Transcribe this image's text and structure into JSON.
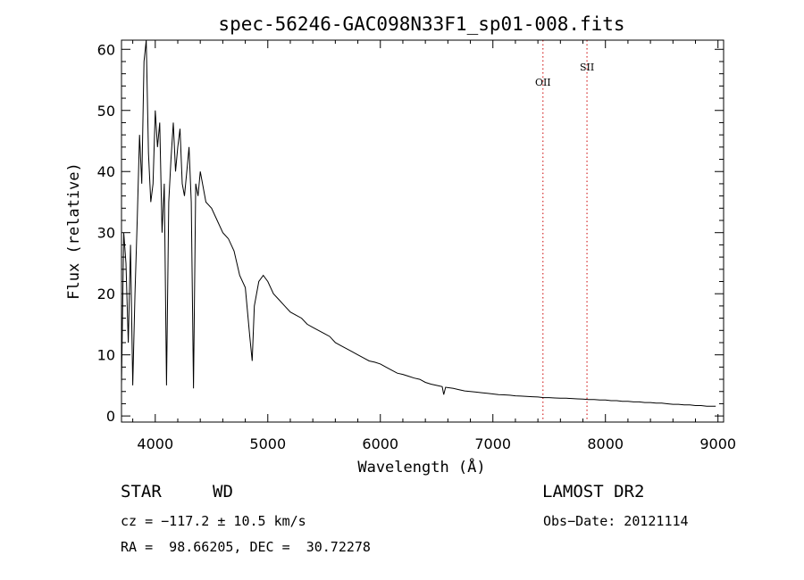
{
  "chart_data": {
    "type": "line",
    "title": "spec-56246-GAC098N33F1_sp01-008.fits",
    "xlabel": "Wavelength (Å)",
    "ylabel": "Flux (relative)",
    "xlim": [
      3700,
      9050
    ],
    "ylim": [
      -1,
      61.5
    ],
    "x_ticks": [
      4000,
      5000,
      6000,
      7000,
      8000,
      9000
    ],
    "y_ticks": [
      0,
      10,
      20,
      30,
      40,
      50,
      60
    ],
    "grid": false,
    "line_color": "#000000",
    "marker_color": "#cc0000",
    "lines": [
      {
        "name": "OII",
        "wavelength": 7445
      },
      {
        "name": "SII",
        "wavelength": 7836
      }
    ],
    "series": [
      {
        "x": [
          3700,
          3720,
          3740,
          3760,
          3780,
          3800,
          3820,
          3840,
          3860,
          3880,
          3900,
          3920,
          3940,
          3960,
          3980,
          4000,
          4020,
          4040,
          4060,
          4080,
          4100,
          4120,
          4140,
          4160,
          4180,
          4200,
          4220,
          4240,
          4260,
          4280,
          4300,
          4320,
          4340,
          4360,
          4380,
          4400,
          4450,
          4500,
          4550,
          4600,
          4650,
          4700,
          4750,
          4800,
          4840,
          4861,
          4880,
          4920,
          4960,
          5000,
          5050,
          5100,
          5150,
          5200,
          5250,
          5300,
          5350,
          5400,
          5450,
          5500,
          5550,
          5600,
          5650,
          5700,
          5750,
          5800,
          5850,
          5900,
          5950,
          6000,
          6050,
          6100,
          6150,
          6200,
          6250,
          6300,
          6350,
          6400,
          6450,
          6500,
          6550,
          6563,
          6580,
          6650,
          6700,
          6750,
          6800,
          6850,
          6900,
          6950,
          7000,
          7050,
          7100,
          7150,
          7200,
          7250,
          7300,
          7350,
          7400,
          7450,
          7500,
          7550,
          7600,
          7650,
          7700,
          7750,
          7800,
          7850,
          7900,
          7950,
          8000,
          8050,
          8100,
          8150,
          8200,
          8250,
          8300,
          8350,
          8400,
          8450,
          8500,
          8550,
          8600,
          8650,
          8700,
          8750,
          8800,
          8850,
          8900,
          8950,
          8980
        ],
        "y": [
          5,
          30,
          25,
          12,
          28,
          5,
          20,
          32,
          46,
          38,
          58,
          62,
          43,
          35,
          38,
          50,
          44,
          48,
          30,
          38,
          5,
          35,
          42,
          48,
          40,
          44,
          47,
          38,
          36,
          40,
          44,
          35,
          4.5,
          38,
          36,
          40,
          35,
          34,
          32,
          30,
          29,
          27,
          23,
          21,
          13,
          9,
          18,
          22,
          23,
          22,
          20,
          19,
          18,
          17,
          16.5,
          16,
          15,
          14.5,
          14,
          13.5,
          13,
          12,
          11.5,
          11,
          10.5,
          10,
          9.5,
          9,
          8.8,
          8.5,
          8,
          7.5,
          7,
          6.8,
          6.5,
          6.2,
          6,
          5.5,
          5.2,
          5,
          4.8,
          3.5,
          4.7,
          4.5,
          4.3,
          4.1,
          4,
          3.9,
          3.8,
          3.7,
          3.6,
          3.5,
          3.45,
          3.4,
          3.3,
          3.25,
          3.2,
          3.15,
          3.1,
          3,
          3,
          2.95,
          2.9,
          2.9,
          2.85,
          2.8,
          2.75,
          2.7,
          2.7,
          2.6,
          2.6,
          2.5,
          2.5,
          2.4,
          2.4,
          2.3,
          2.3,
          2.2,
          2.2,
          2.1,
          2.1,
          2,
          1.9,
          1.9,
          1.8,
          1.8,
          1.7,
          1.7,
          1.6,
          1.6,
          1.6
        ]
      }
    ]
  },
  "info": {
    "class_label": "STAR",
    "subclass": "WD",
    "survey": "LAMOST DR2",
    "velocity": "cz = −117.2 ± 10.5 km/s",
    "obs_date": "Obs−Date: 20121114",
    "coords": "RA =  98.66205, DEC =  30.72278"
  }
}
